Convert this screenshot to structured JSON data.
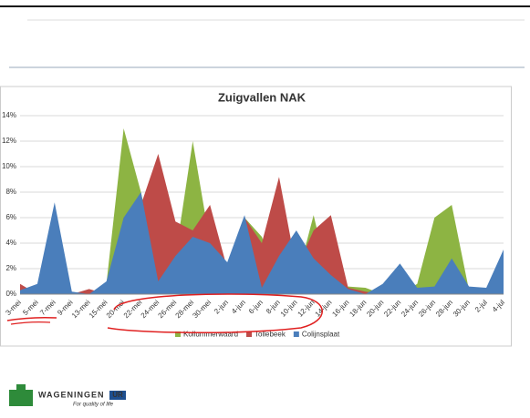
{
  "chart_data": {
    "type": "area",
    "title": "Zuigvallen NAK",
    "categories": [
      "3-mei",
      "5-mei",
      "7-mei",
      "9-mei",
      "13-mei",
      "15-mei",
      "20-mei",
      "22-mei",
      "24-mei",
      "26-mei",
      "28-mei",
      "30-mei",
      "2-jun",
      "4-jun",
      "6-jun",
      "8-jun",
      "10-jun",
      "12-jun",
      "14-jun",
      "16-jun",
      "18-jun",
      "20-jun",
      "22-jun",
      "24-jun",
      "26-jun",
      "28-jun",
      "30-jun",
      "2-jul",
      "4-jul"
    ],
    "series": [
      {
        "name": "Kollummerwaard",
        "color": "#8db443",
        "values": [
          0.5,
          0,
          0,
          0,
          0,
          0.8,
          13,
          8,
          2,
          3,
          12,
          4,
          2,
          6,
          4.5,
          1,
          1,
          6.2,
          0.5,
          0.6,
          0.5,
          0,
          0,
          0.8,
          6,
          7,
          0.3,
          0.4,
          3
        ]
      },
      {
        "name": "Tollebeek",
        "color": "#be4b48",
        "values": [
          0.8,
          0,
          0,
          0,
          0.4,
          0,
          6,
          7,
          11,
          5.7,
          5,
          7,
          2,
          6,
          4,
          9.2,
          2,
          5,
          6.2,
          0.5,
          0.2,
          0,
          0,
          0,
          0,
          0,
          0.4,
          0,
          0
        ]
      },
      {
        "name": "Colijnsplaat",
        "color": "#4a7ebb",
        "values": [
          0.3,
          0.8,
          7.2,
          0.2,
          0,
          1,
          6,
          8,
          1,
          3,
          4.5,
          4,
          2.5,
          6.2,
          0.5,
          3,
          5,
          2.8,
          1.5,
          0.4,
          0,
          0.8,
          2.4,
          0.5,
          0.6,
          2.8,
          0.6,
          0.5,
          3.5
        ]
      }
    ],
    "ylim": [
      0,
      14
    ],
    "yticks": [
      {
        "value": 0,
        "label": "0%"
      },
      {
        "value": 2,
        "label": "2%"
      },
      {
        "value": 4,
        "label": "4%"
      },
      {
        "value": 6,
        "label": "6%"
      },
      {
        "value": 8,
        "label": "8%"
      },
      {
        "value": 10,
        "label": "10%"
      },
      {
        "value": 12,
        "label": "12%"
      },
      {
        "value": 14,
        "label": "14%"
      }
    ],
    "grid": true,
    "legend": "bottom"
  },
  "logo": {
    "name": "WAGENINGEN",
    "suffix": "UR",
    "tagline": "For quality of life"
  }
}
